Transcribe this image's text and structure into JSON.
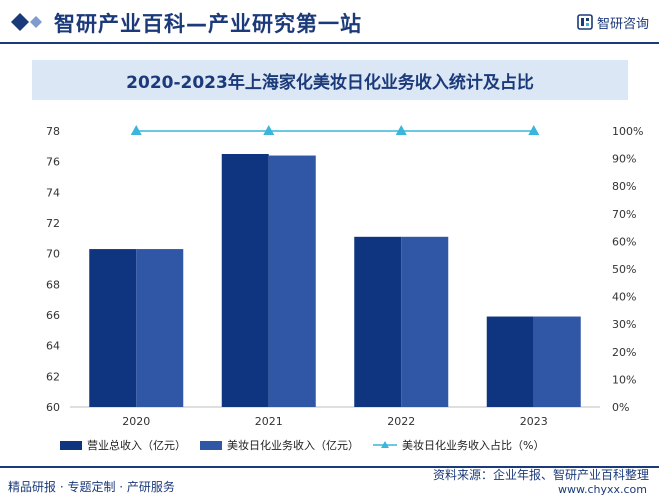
{
  "header": {
    "title": "智研产业百科—产业研究第一站",
    "brand": "智研咨询",
    "brand_icon": "zhiyan-logo-icon",
    "accent_color": "#1b3a7a"
  },
  "footer": {
    "left_text": "精品研报 · 专题定制 · 产研服务",
    "source": "资料来源：企业年报、智研产业百科整理",
    "url": "www.chyxx.com"
  },
  "chart_data": {
    "type": "bar",
    "title": "2020-2023年上海家化美妆日化业务收入统计及占比",
    "categories": [
      "2020",
      "2021",
      "2022",
      "2023"
    ],
    "series": [
      {
        "name": "营业总收入（亿元）",
        "values": [
          70.3,
          76.5,
          71.1,
          65.9
        ],
        "color": "#0f3580",
        "axis": "left"
      },
      {
        "name": "美妆日化业务收入（亿元）",
        "values": [
          70.3,
          76.4,
          71.1,
          65.9
        ],
        "color": "#2f57a6",
        "axis": "left"
      },
      {
        "name": "美妆日化业务收入占比（%）",
        "values": [
          100,
          100,
          100,
          100
        ],
        "color": "#3ab5dc",
        "axis": "right",
        "kind": "line"
      }
    ],
    "y_left": {
      "range": [
        60,
        78
      ],
      "ticks": [
        "60",
        "62",
        "64",
        "66",
        "68",
        "70",
        "72",
        "74",
        "76",
        "78"
      ]
    },
    "y_right": {
      "range": [
        0,
        100
      ],
      "ticks": [
        "0%",
        "10%",
        "20%",
        "30%",
        "40%",
        "50%",
        "60%",
        "70%",
        "80%",
        "90%",
        "100%"
      ]
    },
    "grid": false,
    "legend": "bottom"
  }
}
